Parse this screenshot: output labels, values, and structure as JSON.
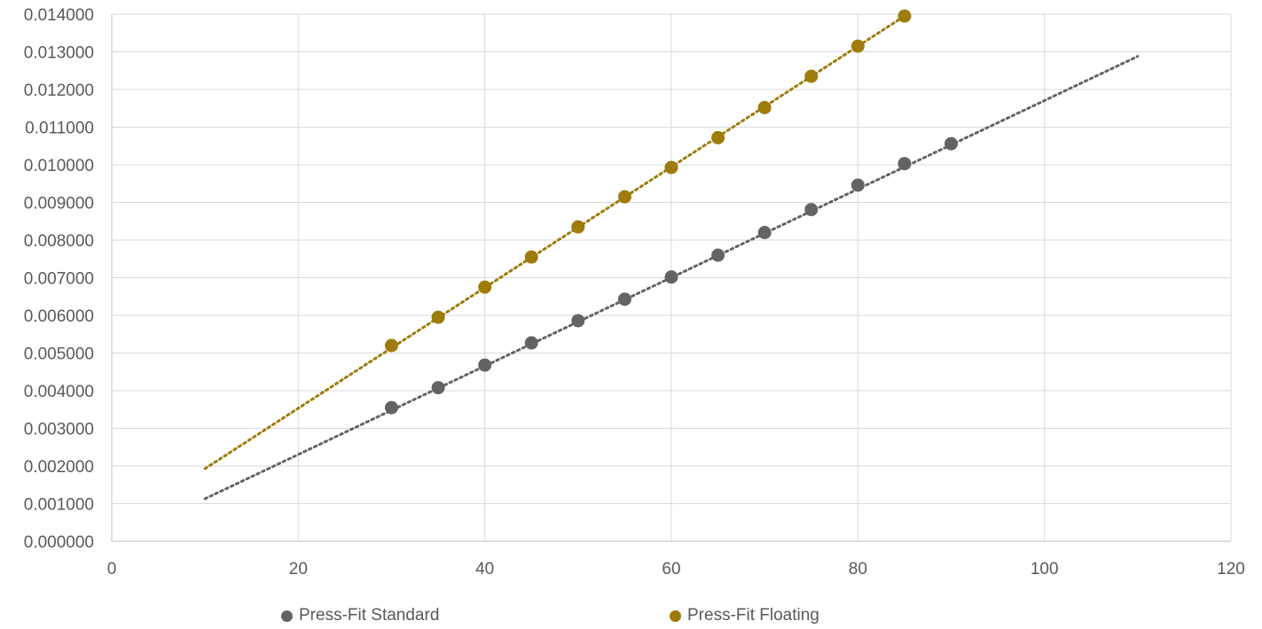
{
  "chart_data": {
    "type": "scatter",
    "title": "",
    "xlabel": "",
    "ylabel": "",
    "xlim": [
      0,
      120
    ],
    "ylim": [
      0,
      0.014
    ],
    "x_ticks": [
      "0",
      "20",
      "40",
      "60",
      "80",
      "100",
      "120"
    ],
    "y_ticks": [
      "0.000000",
      "0.001000",
      "0.002000",
      "0.003000",
      "0.004000",
      "0.005000",
      "0.006000",
      "0.007000",
      "0.008000",
      "0.009000",
      "0.010000",
      "0.011000",
      "0.012000",
      "0.013000",
      "0.014000"
    ],
    "grid": "vertical major gridlines on",
    "legend_position": "bottom",
    "series": [
      {
        "name": "Press-Fit Standard",
        "color": "#636363",
        "points": [
          [
            30,
            0.00355
          ],
          [
            35,
            0.00408
          ],
          [
            40,
            0.00468
          ],
          [
            45,
            0.00527
          ],
          [
            50,
            0.00586
          ],
          [
            55,
            0.00643
          ],
          [
            60,
            0.00702
          ],
          [
            65,
            0.0076
          ],
          [
            70,
            0.0082
          ],
          [
            75,
            0.00881
          ],
          [
            80,
            0.00946
          ],
          [
            85,
            0.01003
          ],
          [
            90,
            0.01056
          ]
        ],
        "trendline": {
          "style": "dotted",
          "from": [
            10,
            0.00113
          ],
          "to": [
            110,
            0.01288
          ]
        }
      },
      {
        "name": "Press-Fit Floating",
        "color": "#9E7B0A",
        "points": [
          [
            30,
            0.0052
          ],
          [
            35,
            0.00595
          ],
          [
            40,
            0.00675
          ],
          [
            45,
            0.00755
          ],
          [
            50,
            0.00835
          ],
          [
            55,
            0.00915
          ],
          [
            60,
            0.00993
          ],
          [
            65,
            0.01072
          ],
          [
            70,
            0.01152
          ],
          [
            75,
            0.01235
          ],
          [
            80,
            0.01315
          ],
          [
            85,
            0.01395
          ]
        ],
        "trendline": {
          "style": "dotted",
          "from": [
            10,
            0.00193
          ],
          "to": [
            85,
            0.01395
          ]
        }
      }
    ]
  }
}
